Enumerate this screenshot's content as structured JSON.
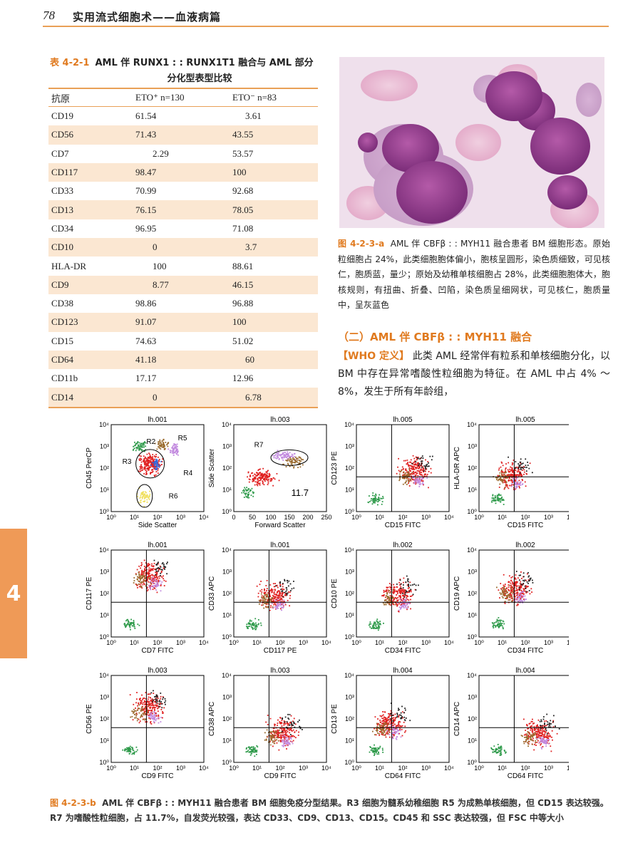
{
  "header": {
    "page_number": "78",
    "title": "实用流式细胞术——血液病篇"
  },
  "table": {
    "number": "表 4-2-1",
    "title_line1": "AML 伴 RUNX1 : : RUNX1T1 融合与 AML 部分",
    "title_line2": "分化型表型比较",
    "headers": [
      "抗原",
      "ETO⁺ n=130",
      "ETO⁻ n=83"
    ],
    "rows": [
      [
        "CD19",
        "61.54",
        "3.61"
      ],
      [
        "CD56",
        "71.43",
        "43.55"
      ],
      [
        "CD7",
        "2.29",
        "53.57"
      ],
      [
        "CD117",
        "98.47",
        "100"
      ],
      [
        "CD33",
        "70.99",
        "92.68"
      ],
      [
        "CD13",
        "76.15",
        "78.05"
      ],
      [
        "CD34",
        "96.95",
        "71.08"
      ],
      [
        "CD10",
        "0",
        "3.7"
      ],
      [
        "HLA-DR",
        "100",
        "88.61"
      ],
      [
        "CD9",
        "8.77",
        "46.15"
      ],
      [
        "CD38",
        "98.86",
        "96.88"
      ],
      [
        "CD123",
        "91.07",
        "100"
      ],
      [
        "CD15",
        "74.63",
        "51.02"
      ],
      [
        "CD64",
        "41.18",
        "60"
      ],
      [
        "CD11b",
        "17.17",
        "12.96"
      ],
      [
        "CD14",
        "0",
        "6.78"
      ]
    ]
  },
  "figure_a": {
    "number": "图 4-2-3-a",
    "caption": "AML 伴 CBFβ : : MYH11 融合患者 BM 细胞形态。原始粒细胞占 24%，此类细胞胞体偏小，胞核呈圆形，染色质细致，可见核仁，胞质蓝，量少；原始及幼稚单核细胞占 28%，此类细胞胞体大，胞核规则，有扭曲、折叠、凹陷，染色质呈细网状，可见核仁，胞质量中，呈灰蓝色"
  },
  "section": {
    "heading": "（二）AML 伴 CBFβ : : MYH11 融合",
    "who_label": "【WHO 定义】",
    "text": "此类 AML 经常伴有粒系和单核细胞分化，以 BM 中存在异常嗜酸性粒细胞为特征。在 AML 中占 4% ～ 8%，发生于所有年龄组，"
  },
  "side_tab": "4",
  "plots": [
    {
      "title": "lh.001",
      "x": "Side Scatter",
      "y": "CD45 PerCP",
      "type": "gates"
    },
    {
      "title": "lh.003",
      "x": "Forward Scatter",
      "y": "Side Scatter",
      "type": "fsc",
      "gate": "R7",
      "value": "11.7"
    },
    {
      "title": "lh.005",
      "x": "CD15 FITC",
      "y": "CD123 PE",
      "type": "quad"
    },
    {
      "title": "lh.005",
      "x": "CD15 FITC",
      "y": "HLA-DR APC",
      "type": "quad"
    },
    {
      "title": "lh.001",
      "x": "CD7 FITC",
      "y": "CD117 PE",
      "type": "quad"
    },
    {
      "title": "lh.001",
      "x": "CD117 PE",
      "y": "CD33 APC",
      "type": "quad"
    },
    {
      "title": "lh.002",
      "x": "CD34 FITC",
      "y": "CD10 PE",
      "type": "quad"
    },
    {
      "title": "lh.002",
      "x": "CD34 FITC",
      "y": "CD19 APC",
      "type": "quad"
    },
    {
      "title": "lh.003",
      "x": "CD9 FITC",
      "y": "CD56 PE",
      "type": "quad"
    },
    {
      "title": "lh.003",
      "x": "CD9 FITC",
      "y": "CD38 APC",
      "type": "quad"
    },
    {
      "title": "lh.004",
      "x": "CD64 FITC",
      "y": "CD13 PE",
      "type": "quad"
    },
    {
      "title": "lh.004",
      "x": "CD64 FITC",
      "y": "CD14 APC",
      "type": "quad"
    }
  ],
  "gate_labels": [
    "R2",
    "R5",
    "R3",
    "R4",
    "R6"
  ],
  "log_ticks": [
    "10⁰",
    "10¹",
    "10²",
    "10³",
    "10⁴"
  ],
  "fsc_ticks": [
    "0",
    "50",
    "100",
    "150",
    "200",
    "250"
  ],
  "figure_b": {
    "number": "图 4-2-3-b",
    "caption": "AML 伴 CBFβ : : MYH11 融合患者 BM 细胞免疫分型结果。R3 细胞为髓系幼稚细胞 R5 为成熟单核细胞，但 CD15 表达较强。R7 为嗜酸性粒细胞，占 11.7%，自发荧光较强，表达 CD33、CD9、CD13、CD15。CD45 和 SSC 表达较强，但 FSC 中等大小"
  },
  "colors": {
    "accent": "#e07a1f",
    "border": "#e9a057",
    "row_alt": "#fbe7d2",
    "side_tab": "#ef9a57"
  }
}
